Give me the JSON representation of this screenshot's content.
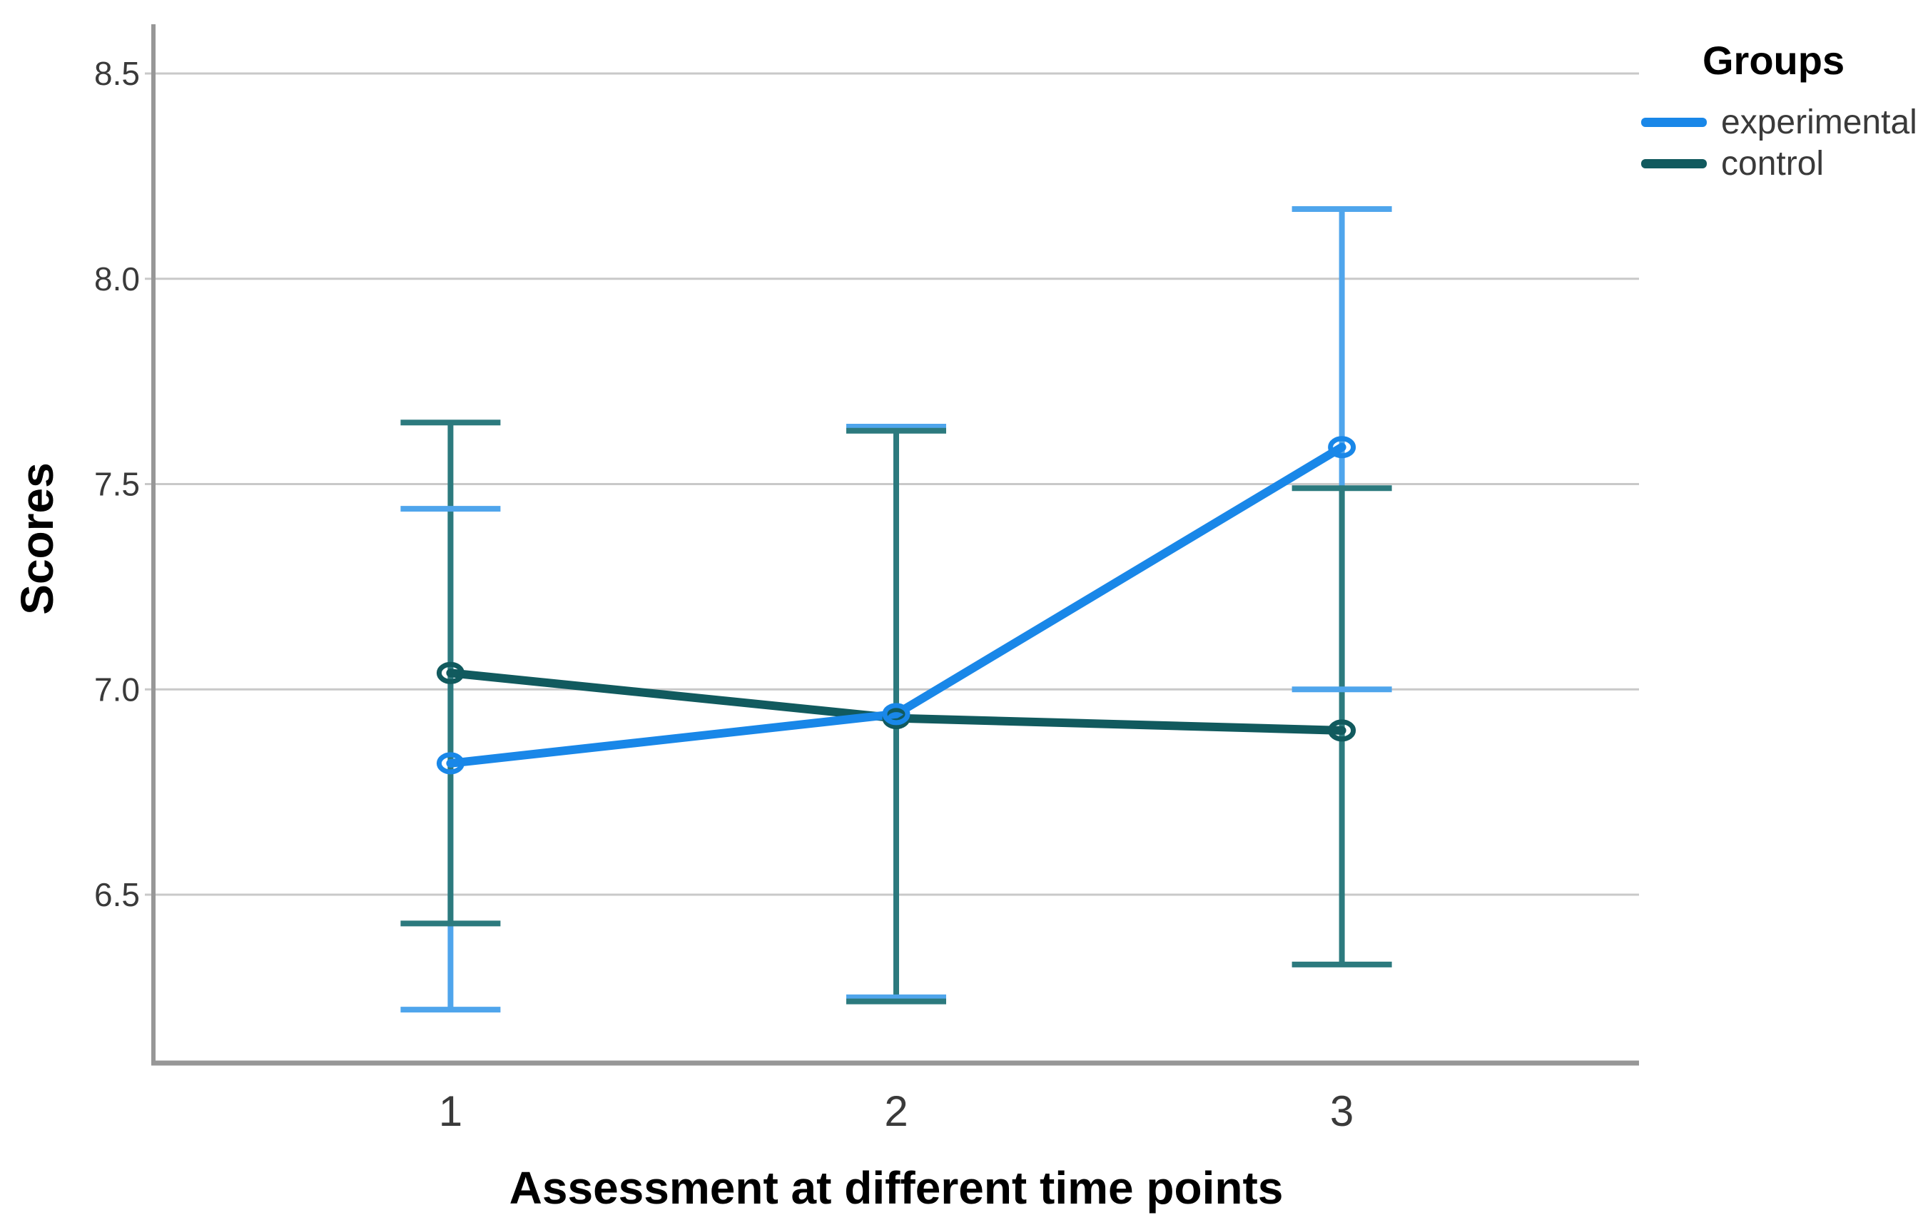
{
  "chart_data": {
    "type": "line",
    "title": "",
    "xlabel": "Assessment at different time points",
    "ylabel": "Scores",
    "categories": [
      "1",
      "2",
      "3"
    ],
    "y_ticks": [
      6.5,
      7.0,
      7.5,
      8.0,
      8.5
    ],
    "ylim": [
      6.09,
      8.62
    ],
    "grid": true,
    "error_bars": true,
    "marker": "open-circle",
    "legend": {
      "title": "Groups",
      "position": "top-right"
    },
    "series": [
      {
        "name": "experimental",
        "color": "#1987E8",
        "error_color": "#4FA5EC",
        "values": [
          6.82,
          6.94,
          7.59
        ],
        "ci_low": [
          6.22,
          6.25,
          7.0
        ],
        "ci_high": [
          7.44,
          7.64,
          8.17
        ]
      },
      {
        "name": "control",
        "color": "#115A5E",
        "error_color": "#2C7A7E",
        "values": [
          7.04,
          6.93,
          6.9
        ],
        "ci_low": [
          6.43,
          6.24,
          6.33
        ],
        "ci_high": [
          7.65,
          7.63,
          7.49
        ]
      }
    ],
    "colors": {
      "axis": "#979797",
      "grid": "#C9C9C9",
      "tick_text": "#3A3A3A",
      "title_text": "#000000",
      "background": "#FFFFFF"
    }
  }
}
